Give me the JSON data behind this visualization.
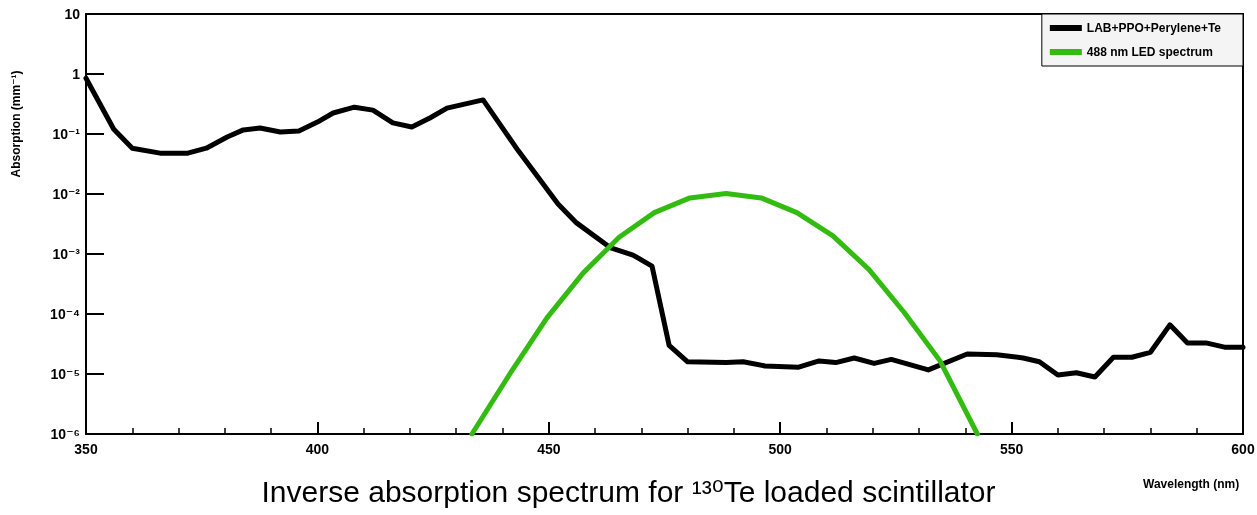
{
  "chart_data": {
    "type": "line",
    "title": "Inverse absorption spectrum for ¹³⁰Te loaded scintillator",
    "xlabel": "Wavelength (nm)",
    "ylabel": "Absorption (mm⁻¹)",
    "log": "y",
    "xlim": [
      350,
      600
    ],
    "xticks": [
      350,
      400,
      450,
      500,
      550,
      600
    ],
    "ylim": [
      1e-06,
      10
    ],
    "yticks": [
      {
        "value": 1e-06,
        "label": "10⁻⁶"
      },
      {
        "value": 1e-05,
        "label": "10⁻⁵"
      },
      {
        "value": 0.0001,
        "label": "10⁻⁴"
      },
      {
        "value": 0.001,
        "label": "10⁻³"
      },
      {
        "value": 0.01,
        "label": "10⁻²"
      },
      {
        "value": 0.1,
        "label": "10⁻¹"
      },
      1,
      10
    ],
    "grid": false,
    "legend": "top right",
    "marker": "none",
    "line_style": "solid",
    "series": [
      {
        "name": "LAB+PPO+Perylene+Te",
        "color": "#000000",
        "x": [
          350,
          356,
          360,
          366,
          372,
          376,
          380.5,
          384,
          387.6,
          392,
          396,
          400,
          403.4,
          408,
          412,
          416.3,
          420.4,
          424.3,
          428,
          435.8,
          443.3,
          452,
          456,
          463.4,
          468.2,
          472.3,
          476,
          480,
          488.3,
          492,
          496.7,
          504,
          508.4,
          512,
          516,
          520.3,
          524,
          532,
          540.4,
          546.8,
          552.5,
          556,
          560,
          564,
          568,
          572,
          576,
          580,
          584.2,
          588,
          592,
          596,
          600
        ],
        "values": [
          0.85,
          0.12,
          0.058,
          0.048,
          0.048,
          0.058,
          0.089,
          0.117,
          0.126,
          0.108,
          0.112,
          0.158,
          0.224,
          0.28,
          0.25,
          0.153,
          0.131,
          0.185,
          0.27,
          0.37,
          0.054,
          0.0068,
          0.0033,
          0.00126,
          0.00096,
          0.00063,
          3e-05,
          1.6e-05,
          1.55e-05,
          1.6e-05,
          1.36e-05,
          1.3e-05,
          1.65e-05,
          1.55e-05,
          1.85e-05,
          1.5e-05,
          1.75e-05,
          1.17e-05,
          2.15e-05,
          2.1e-05,
          1.85e-05,
          1.6e-05,
          9.6e-06,
          1.05e-05,
          8.9e-06,
          1.9e-05,
          1.9e-05,
          2.3e-05,
          6.6e-05,
          3.3e-05,
          3.3e-05,
          2.8e-05,
          2.8e-05
        ]
      },
      {
        "name": "488 nm LED spectrum",
        "color": "#33bb11",
        "x": [
          433.4,
          441.9,
          449.6,
          457.4,
          465.2,
          472.8,
          480.5,
          488.3,
          495.9,
          503.6,
          511.4,
          519.2,
          526.8,
          534.5,
          542.6
        ],
        "values": [
          1e-06,
          1.1e-05,
          8.6e-05,
          0.00048,
          0.0019,
          0.0049,
          0.0086,
          0.0102,
          0.0086,
          0.0049,
          0.002,
          0.00055,
          0.000106,
          1.67e-05,
          1e-06
        ]
      }
    ]
  }
}
